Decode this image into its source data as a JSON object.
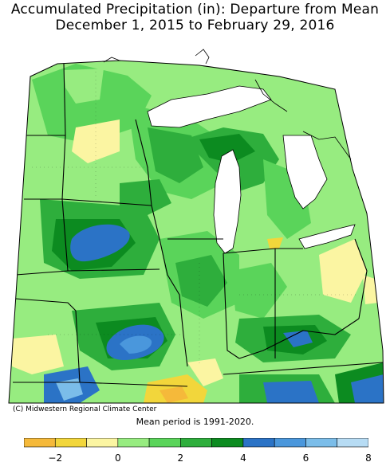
{
  "title_line1": "Accumulated Precipitation (in): Departure from Mean",
  "title_line2": "December 1, 2015 to February 29, 2016",
  "credit": "(C) Midwestern Regional Climate Center",
  "note": "Mean period is 1991-2020.",
  "legend": {
    "tick_labels": [
      "-2",
      "0",
      "2",
      "4",
      "6",
      "8"
    ],
    "bins": [
      {
        "from": -3,
        "to": -2,
        "color": "#f5b93a"
      },
      {
        "from": -2,
        "to": -1,
        "color": "#f2d63b"
      },
      {
        "from": -1,
        "to": 0,
        "color": "#fbf5a2"
      },
      {
        "from": 0,
        "to": 1,
        "color": "#97ec80"
      },
      {
        "from": 1,
        "to": 2,
        "color": "#5ad45a"
      },
      {
        "from": 2,
        "to": 3,
        "color": "#2eae3c"
      },
      {
        "from": 3,
        "to": 4,
        "color": "#0c8b20"
      },
      {
        "from": 4,
        "to": 5,
        "color": "#2b73c6"
      },
      {
        "from": 5,
        "to": 6,
        "color": "#4a97dc"
      },
      {
        "from": 6,
        "to": 7,
        "color": "#7bbde9"
      },
      {
        "from": 7,
        "to": 8,
        "color": "#b7dcf4"
      }
    ]
  },
  "colors": {
    "lake": "#ffffff",
    "border": "#000000"
  }
}
